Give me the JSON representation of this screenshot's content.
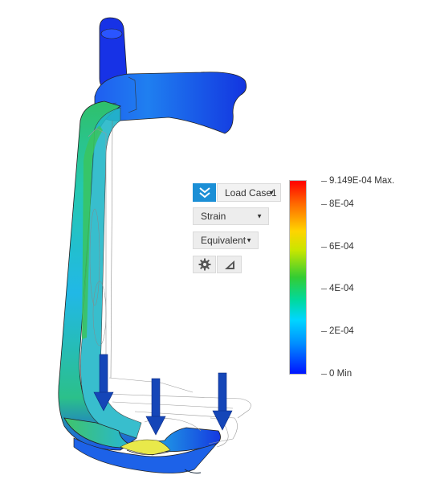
{
  "toolbar": {
    "load_case_label": "Load Case1",
    "result_type_label": "Strain",
    "result_component_label": "Equivalent"
  },
  "legend": {
    "max_label": "9.149E-04 Max.",
    "tick_8e4": "8E-04",
    "tick_6e4": "6E-04",
    "tick_4e4": "4E-04",
    "tick_2e4": "2E-04",
    "min_label": "0 Min",
    "colors": [
      "#ff0000",
      "#ff6a00",
      "#ffd400",
      "#c8e600",
      "#33cc33",
      "#00d9a0",
      "#00d6ff",
      "#0090ff",
      "#0014ff"
    ]
  },
  "icons": {
    "collapse": "double-chevron-down-icon",
    "settings": "gear-icon",
    "probe": "triangle-probe-icon",
    "load_arrow": "load-arrow-icon"
  },
  "colors": {
    "accent": "#1b8fd6",
    "load_arrow": "#1546b8",
    "model_blue": "#1030e0",
    "model_cyan": "#23c8d8",
    "model_green": "#3fc46a"
  }
}
